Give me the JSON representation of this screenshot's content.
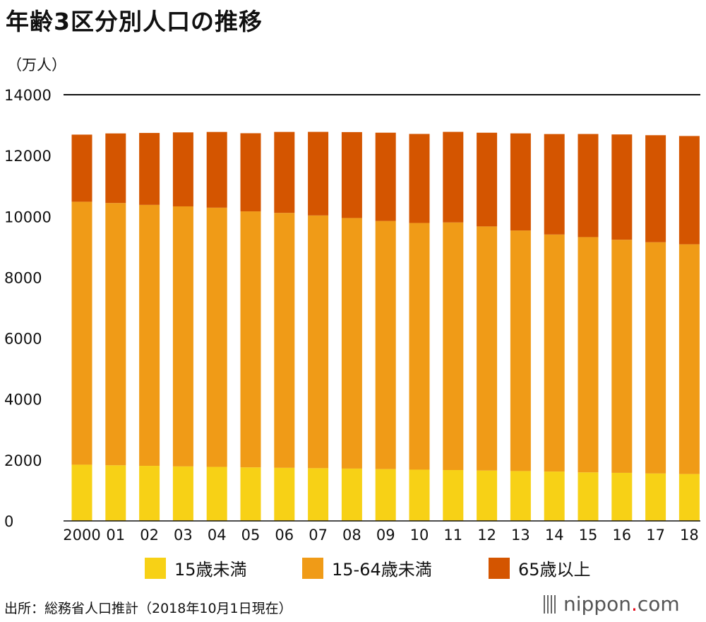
{
  "page": {
    "title": "年齢3区分別人口の推移",
    "unit_label": "（万人）",
    "source": "出所：総務省人口推計（2018年10月1日現在）",
    "brand_main": "nippon",
    "brand_dot": ".",
    "brand_suffix": "com"
  },
  "chart_data": {
    "type": "bar",
    "stacked": true,
    "title": "年齢3区分別人口の推移",
    "ylabel": "（万人）",
    "xlabel": "",
    "ylim": [
      0,
      14000
    ],
    "yticks": [
      "0",
      "2000",
      "4000",
      "6000",
      "8000",
      "10000",
      "12000",
      "14000"
    ],
    "categories": [
      "2000",
      "01",
      "02",
      "03",
      "04",
      "05",
      "06",
      "07",
      "08",
      "09",
      "10",
      "11",
      "12",
      "13",
      "14",
      "15",
      "16",
      "17",
      "18"
    ],
    "series": [
      {
        "name": "15歳未満",
        "color": "#f7d116",
        "values": [
          1847,
          1828,
          1810,
          1791,
          1775,
          1759,
          1745,
          1733,
          1720,
          1703,
          1684,
          1671,
          1655,
          1639,
          1623,
          1595,
          1580,
          1559,
          1542
        ]
      },
      {
        "name": "15-64歳未満",
        "color": "#f09b17",
        "values": [
          8638,
          8614,
          8571,
          8541,
          8514,
          8409,
          8373,
          8301,
          8230,
          8149,
          8103,
          8134,
          8018,
          7901,
          7785,
          7728,
          7656,
          7596,
          7545
        ]
      },
      {
        "name": "65歳以上",
        "color": "#d45500",
        "values": [
          2204,
          2287,
          2363,
          2431,
          2488,
          2567,
          2660,
          2746,
          2822,
          2901,
          2925,
          2975,
          3079,
          3190,
          3300,
          3387,
          3459,
          3515,
          3557
        ]
      }
    ],
    "legend_position": "bottom"
  }
}
